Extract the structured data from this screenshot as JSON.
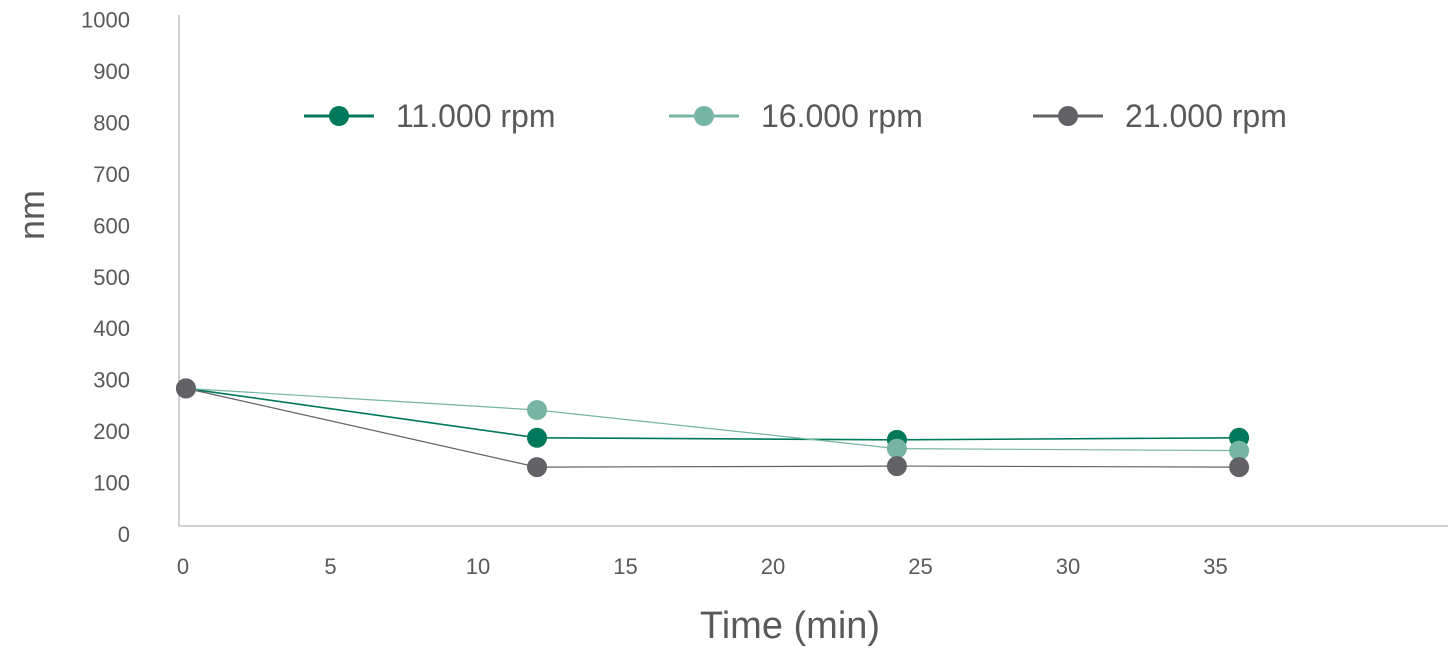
{
  "chart_data": {
    "type": "scatter",
    "title": "",
    "xlabel": "Time (min)",
    "ylabel": "nm",
    "xlim": [
      0,
      43
    ],
    "ylim": [
      0,
      1000
    ],
    "xticks": [
      0,
      5,
      10,
      15,
      20,
      25,
      30,
      35
    ],
    "yticks": [
      0,
      100,
      200,
      300,
      400,
      500,
      600,
      700,
      800,
      900,
      1000
    ],
    "grid": false,
    "legend_position": "top",
    "series": [
      {
        "name": "11.000 rpm",
        "color": "#00795A",
        "x": [
          0.1,
          12,
          24.2,
          35.8
        ],
        "y": [
          283,
          187,
          183,
          187
        ]
      },
      {
        "name": "16.000 rpm",
        "color": "#76B5A3",
        "x": [
          0.1,
          12,
          24.2,
          35.8
        ],
        "y": [
          283,
          241,
          166,
          162
        ]
      },
      {
        "name": "21.000 rpm",
        "color": "#616166",
        "x": [
          0.1,
          12,
          24.2,
          35.8
        ],
        "y": [
          283,
          130,
          132,
          130
        ]
      }
    ]
  }
}
